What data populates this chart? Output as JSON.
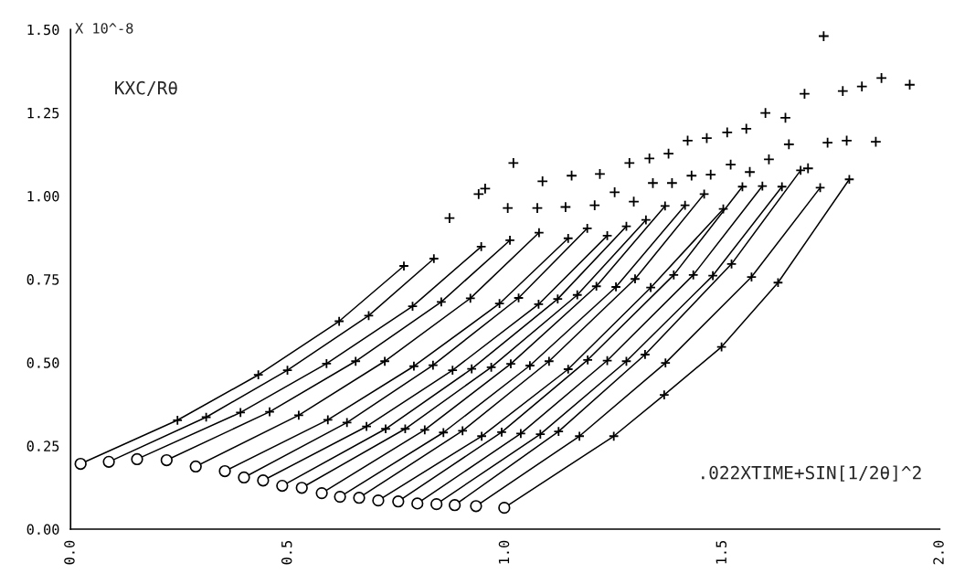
{
  "chart_data": {
    "type": "line",
    "ylabel": "KXC/Rθ",
    "xlabel": ".022XTIME+SIN[1/2θ]^2",
    "annotations": [
      "X 10^-8"
    ],
    "xlim": [
      0,
      2.0
    ],
    "ylim": [
      0,
      1.5
    ],
    "xticks": [
      {
        "value": 0,
        "label": "0.0"
      },
      0.5,
      {
        "value": 1,
        "label": "1.0"
      },
      1.5,
      {
        "value": 2,
        "label": "2.0"
      }
    ],
    "yticks": [
      {
        "value": 0,
        "label": "0.00"
      },
      0.25,
      {
        "value": 0.5,
        "label": "0.50"
      },
      0.75,
      {
        "value": 1,
        "label": "1.00"
      },
      1.25,
      {
        "value": 1.5,
        "label": "1.50"
      }
    ],
    "grid": false,
    "line_style": "solid",
    "series": [
      {
        "type": "line",
        "marker": "cross",
        "color": "#000000",
        "x": [
          0.023,
          0.246,
          0.432,
          0.618,
          0.767
        ],
        "values": [
          0.196,
          0.327,
          0.463,
          0.624,
          0.79
        ]
      },
      {
        "type": "line",
        "marker": "cross",
        "color": "#000000",
        "x": [
          0.088,
          0.312,
          0.499,
          0.686,
          0.836
        ],
        "values": [
          0.202,
          0.336,
          0.477,
          0.641,
          0.812
        ]
      },
      {
        "type": "line",
        "marker": "cross",
        "color": "#000000",
        "x": [
          0.153,
          0.391,
          0.589,
          0.787,
          0.945
        ],
        "values": [
          0.21,
          0.35,
          0.497,
          0.669,
          0.848
        ]
      },
      {
        "type": "line",
        "marker": "cross",
        "color": "#000000",
        "x": [
          0.221,
          0.458,
          0.656,
          0.853,
          1.011
        ],
        "values": [
          0.207,
          0.352,
          0.504,
          0.682,
          0.867
        ]
      },
      {
        "type": "line",
        "marker": "cross",
        "color": "#000000",
        "x": [
          0.288,
          0.525,
          0.723,
          0.92,
          1.078
        ],
        "values": [
          0.188,
          0.342,
          0.504,
          0.693,
          0.89
        ]
      },
      {
        "type": "line",
        "marker": "cross",
        "color": "#000000",
        "x": [
          0.355,
          0.592,
          0.79,
          0.987,
          1.145
        ],
        "values": [
          0.174,
          0.328,
          0.489,
          0.677,
          0.873
        ]
      },
      {
        "type": "line",
        "marker": "cross",
        "color": "#000000",
        "x": [
          0.399,
          0.636,
          0.834,
          1.031,
          1.189
        ],
        "values": [
          0.155,
          0.32,
          0.492,
          0.694,
          0.903
        ]
      },
      {
        "type": "line",
        "marker": "cross",
        "color": "#000000",
        "x": [
          0.443,
          0.681,
          0.879,
          1.077,
          1.235
        ],
        "values": [
          0.146,
          0.308,
          0.477,
          0.675,
          0.881
        ]
      },
      {
        "type": "line",
        "marker": "cross",
        "color": "#000000",
        "x": [
          0.487,
          0.725,
          0.923,
          1.121,
          1.279
        ],
        "values": [
          0.13,
          0.301,
          0.481,
          0.691,
          0.909
        ]
      },
      {
        "type": "line",
        "marker": "cross",
        "color": "#000000",
        "x": [
          0.532,
          0.77,
          0.968,
          1.166,
          1.324
        ],
        "values": [
          0.124,
          0.301,
          0.486,
          0.703,
          0.928
        ]
      },
      {
        "type": "line",
        "marker": "cross",
        "color": "#000000",
        "x": [
          0.578,
          0.815,
          1.013,
          1.21,
          1.368
        ],
        "values": [
          0.108,
          0.298,
          0.496,
          0.729,
          0.97
        ]
      },
      {
        "type": "line",
        "marker": "cross",
        "color": "#000000",
        "x": [
          0.62,
          0.858,
          1.057,
          1.255,
          1.414
        ],
        "values": [
          0.097,
          0.29,
          0.491,
          0.727,
          0.972
        ]
      },
      {
        "type": "line",
        "marker": "cross",
        "color": "#000000",
        "x": [
          0.664,
          0.902,
          1.101,
          1.299,
          1.458
        ],
        "values": [
          0.094,
          0.295,
          0.504,
          0.751,
          1.006
        ]
      },
      {
        "type": "line",
        "marker": "cross",
        "color": "#000000",
        "x": [
          0.708,
          0.946,
          1.145,
          1.335,
          1.502
        ],
        "values": [
          0.086,
          0.279,
          0.48,
          0.725,
          0.961
        ]
      },
      {
        "type": "line",
        "marker": "cross",
        "color": "#000000",
        "x": [
          0.754,
          0.992,
          1.19,
          1.388,
          1.546
        ],
        "values": [
          0.083,
          0.291,
          0.508,
          0.763,
          1.028
        ]
      },
      {
        "type": "line",
        "marker": "cross",
        "color": "#000000",
        "x": [
          0.798,
          1.036,
          1.235,
          1.433,
          1.592
        ],
        "values": [
          0.077,
          0.287,
          0.506,
          0.763,
          1.03
        ]
      },
      {
        "type": "line",
        "marker": "cross",
        "color": "#000000",
        "x": [
          0.842,
          1.081,
          1.279,
          1.478,
          1.637
        ],
        "values": [
          0.075,
          0.285,
          0.504,
          0.761,
          1.028
        ]
      },
      {
        "type": "line",
        "marker": "cross",
        "color": "#000000",
        "x": [
          0.884,
          1.123,
          1.322,
          1.521,
          1.68
        ],
        "values": [
          0.072,
          0.293,
          0.524,
          0.796,
          1.077
        ]
      },
      {
        "type": "line",
        "marker": "cross",
        "color": "#000000",
        "x": [
          0.933,
          1.171,
          1.369,
          1.567,
          1.725
        ],
        "values": [
          0.069,
          0.279,
          0.499,
          0.757,
          1.025
        ]
      },
      {
        "type": "line",
        "marker": "cross",
        "color": "#000000",
        "x": [
          0.998,
          1.25,
          1.366,
          1.498,
          1.628,
          1.792
        ],
        "values": [
          0.064,
          0.279,
          0.403,
          0.547,
          0.74,
          1.05
        ]
      },
      {
        "type": "scatter",
        "marker": "circle",
        "color": "#000000",
        "x": [
          0.023,
          0.088,
          0.153,
          0.221,
          0.288,
          0.355,
          0.399,
          0.443,
          0.487,
          0.532,
          0.578,
          0.62,
          0.664,
          0.708,
          0.754,
          0.798,
          0.842,
          0.884,
          0.933,
          0.998
        ],
        "values": [
          0.196,
          0.202,
          0.21,
          0.207,
          0.188,
          0.174,
          0.155,
          0.146,
          0.13,
          0.124,
          0.108,
          0.097,
          0.094,
          0.086,
          0.083,
          0.077,
          0.075,
          0.072,
          0.069,
          0.064
        ]
      },
      {
        "type": "scatter",
        "marker": "cross",
        "color": "#000000",
        "x": [
          0.872,
          0.939,
          0.954,
          1.006,
          1.019,
          1.074,
          1.086,
          1.139,
          1.153,
          1.206,
          1.218,
          1.252,
          1.286,
          1.296,
          1.332,
          1.34,
          1.376,
          1.384,
          1.42,
          1.429,
          1.464,
          1.473,
          1.511,
          1.519,
          1.555,
          1.563,
          1.599,
          1.607,
          1.645,
          1.653,
          1.689,
          1.697,
          1.733,
          1.742,
          1.777,
          1.786,
          1.821,
          1.853,
          1.866,
          1.931
        ],
        "values": [
          0.934,
          1.006,
          1.022,
          0.964,
          1.099,
          0.964,
          1.044,
          0.967,
          1.061,
          0.972,
          1.066,
          1.011,
          1.099,
          0.983,
          1.113,
          1.039,
          1.127,
          1.039,
          1.166,
          1.061,
          1.174,
          1.064,
          1.191,
          1.094,
          1.202,
          1.072,
          1.249,
          1.11,
          1.235,
          1.155,
          1.307,
          1.083,
          1.48,
          1.16,
          1.315,
          1.166,
          1.329,
          1.163,
          1.354,
          1.334
        ]
      }
    ]
  }
}
